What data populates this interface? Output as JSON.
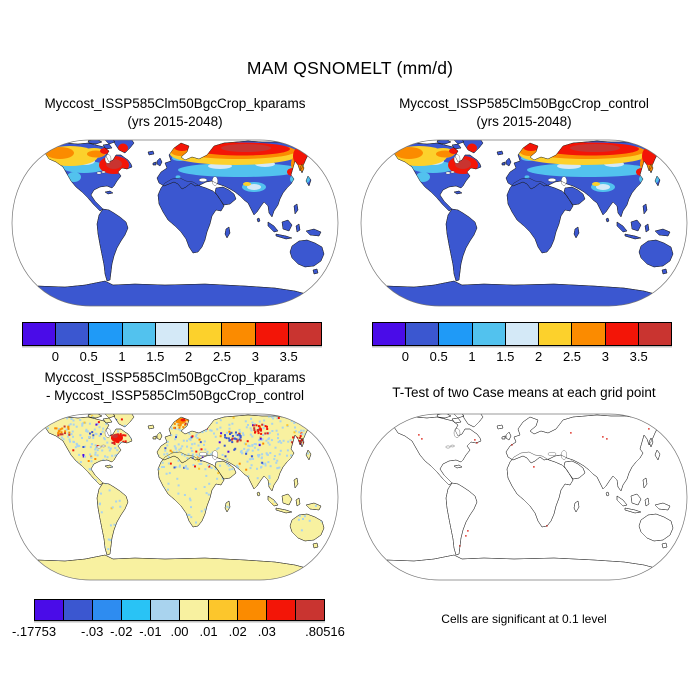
{
  "title": "MAM QSNOMELT (mm/d)",
  "panels": {
    "top_left": {
      "title_line1": "Myccost_ISSP585Clm50BgcCrop_kparams",
      "title_line2": "(yrs 2015-2048)"
    },
    "top_right": {
      "title_line1": "Myccost_ISSP585Clm50BgcCrop_control",
      "title_line2": "(yrs 2015-2048)"
    },
    "bottom_left": {
      "title_line1": "Myccost_ISSP585Clm50BgcCrop_kparams",
      "title_line2": "- Myccost_ISSP585Clm50BgcCrop_control"
    },
    "bottom_right": {
      "title": "T-Test of two Case means at each grid point",
      "caption": "Cells are significant at 0.1 level"
    }
  },
  "colors": {
    "violet": "#4a0ce8",
    "blue": "#3b57d0",
    "azure": "#1f9af7",
    "sky": "#52c2ee",
    "pale_blue": "#d4e9f7",
    "gold": "#fcd12c",
    "orange": "#fb8b00",
    "red": "#f31507",
    "dark_red": "#c93430",
    "diff_azure": "#2e8cf0",
    "diff_cyan": "#29c3f5",
    "diff_light_blue": "#a9d3ee",
    "diff_pale_yellow": "#f8f1a0",
    "diff_gold": "#fcc62c",
    "ttest_speck": "#e4574f",
    "map_outline": "#1a1a1a",
    "globe_outline": "#777777",
    "ocean": "#ffffff"
  },
  "chart_data": [
    {
      "type": "heatmap",
      "panel": "top_left",
      "title": "Myccost_ISSP585Clm50BgcCrop_kparams (yrs 2015-2048)",
      "season": "MAM",
      "variable": "QSNOMELT",
      "units": "mm/d",
      "projection": "robinson-world-map",
      "colorbar_tick_labels": [
        "0",
        "0.5",
        "1",
        "1.5",
        "2",
        "2.5",
        "3",
        "3.5"
      ],
      "colorbar_colors": [
        "#4a0ce8",
        "#3b57d0",
        "#1f9af7",
        "#52c2ee",
        "#d4e9f7",
        "#fcd12c",
        "#fb8b00",
        "#f31507",
        "#c93430"
      ],
      "pattern": "land mostly 0-0.5 (blue); 2-3.5+ (yellow/orange/red) band across Alaska, Canada, Quebec-Labrador, southern Greenland, Scandinavia, Siberia, Kamchatka; oceans masked white"
    },
    {
      "type": "heatmap",
      "panel": "top_right",
      "title": "Myccost_ISSP585Clm50BgcCrop_control (yrs 2015-2048)",
      "season": "MAM",
      "variable": "QSNOMELT",
      "units": "mm/d",
      "projection": "robinson-world-map",
      "colorbar_tick_labels": [
        "0",
        "0.5",
        "1",
        "1.5",
        "2",
        "2.5",
        "3",
        "3.5"
      ],
      "colorbar_colors": [
        "#4a0ce8",
        "#3b57d0",
        "#1f9af7",
        "#52c2ee",
        "#d4e9f7",
        "#fcd12c",
        "#fb8b00",
        "#f31507",
        "#c93430"
      ],
      "pattern": "visually identical to kparams panel: high snowmelt across high northern latitudes, near zero elsewhere"
    },
    {
      "type": "heatmap",
      "panel": "bottom_left",
      "title": "Myccost_ISSP585Clm50BgcCrop_kparams - Myccost_ISSP585Clm50BgcCrop_control",
      "projection": "robinson-world-map",
      "value_min": -0.17753,
      "value_max": 0.80516,
      "colorbar_tick_labels": [
        "-.17753",
        "-.03",
        "-.02",
        "-.01",
        ".00",
        ".01",
        ".02",
        ".03",
        ".80516"
      ],
      "colorbar_colors": [
        "#4a0ce8",
        "#3b57d0",
        "#2e8cf0",
        "#29c3f5",
        "#a9d3ee",
        "#f8f1a0",
        "#fcc62c",
        "#fb8b00",
        "#f31507",
        "#c93430"
      ],
      "pattern": "land mostly .00-.01 (pale yellow) with light-blue speckle noise; clusters of red/orange differences over Quebec-Labrador, Scandinavia and central Siberia; scattered blue/violet cells across northern Eurasia"
    },
    {
      "type": "map",
      "panel": "bottom_right",
      "title": "T-Test of two Case means at each grid point",
      "caption": "Cells are significant at 0.1 level",
      "projection": "robinson-world-map",
      "pattern": "continent outlines only; very sparse small red significant cells (Alaska, Labrador, northern Russia, north Africa, central Africa, Patagonia)"
    }
  ]
}
